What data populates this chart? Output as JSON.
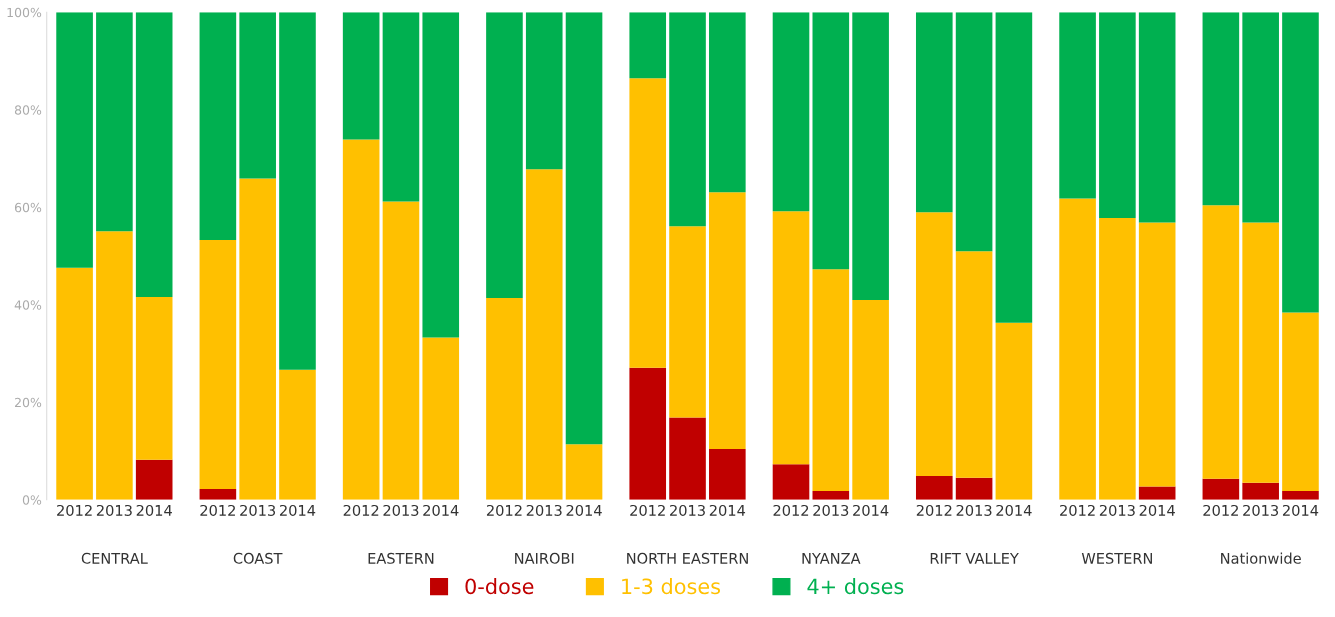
{
  "chart_data": {
    "type": "bar",
    "stacked": true,
    "categories": [
      "2012",
      "2013",
      "2014",
      "2012",
      "2013",
      "2014",
      "2012",
      "2013",
      "2014",
      "2012",
      "2013",
      "2014",
      "2012",
      "2013",
      "2014",
      "2012",
      "2013",
      "2014",
      "2012",
      "2013",
      "2014",
      "2012",
      "2013",
      "2014",
      "2012",
      "2013",
      "2014"
    ],
    "annotations": [
      "CENTRAL",
      "COAST",
      "EASTERN",
      "NAIROBI",
      "NORTH EASTERN",
      "NYANZA",
      "RIFT VALLEY",
      "WESTERN",
      "Nationwide"
    ],
    "ylim": [
      0,
      100
    ],
    "yticks": [
      {
        "value": 0,
        "label": "0%"
      },
      {
        "value": 20,
        "label": "20%"
      },
      {
        "value": 40,
        "label": "40%"
      },
      {
        "value": 60,
        "label": "60%"
      },
      {
        "value": 80,
        "label": "80%"
      },
      {
        "value": 100,
        "label": "100%"
      }
    ],
    "legend": "bottom",
    "series": [
      {
        "name": "0-dose",
        "color": "#c00000",
        "values": [
          0,
          0,
          8.2,
          2.2,
          0,
          0,
          0,
          0,
          0,
          0,
          0,
          0,
          27.1,
          16.9,
          10.4,
          7.3,
          1.8,
          0,
          4.9,
          4.5,
          0,
          0,
          0,
          2.7,
          4.3,
          3.5,
          1.8
        ]
      },
      {
        "name": "1-3 doses",
        "color": "#ffc000",
        "values": [
          47.6,
          55.1,
          33.4,
          51.1,
          65.9,
          26.7,
          73.9,
          61.2,
          33.3,
          41.4,
          67.8,
          11.4,
          59.4,
          39.2,
          52.7,
          51.9,
          45.5,
          41.0,
          54.1,
          46.5,
          36.3,
          61.8,
          57.8,
          54.2,
          56.1,
          53.4,
          36.6
        ]
      },
      {
        "name": "4+ doses",
        "color": "#00b050",
        "values": [
          52.4,
          44.9,
          58.4,
          46.7,
          34.1,
          73.3,
          26.1,
          38.8,
          66.7,
          58.6,
          32.2,
          88.6,
          13.5,
          43.9,
          36.9,
          40.8,
          52.7,
          59.0,
          41.0,
          49.0,
          63.7,
          38.2,
          42.2,
          43.1,
          39.6,
          43.1,
          61.6
        ]
      }
    ]
  }
}
